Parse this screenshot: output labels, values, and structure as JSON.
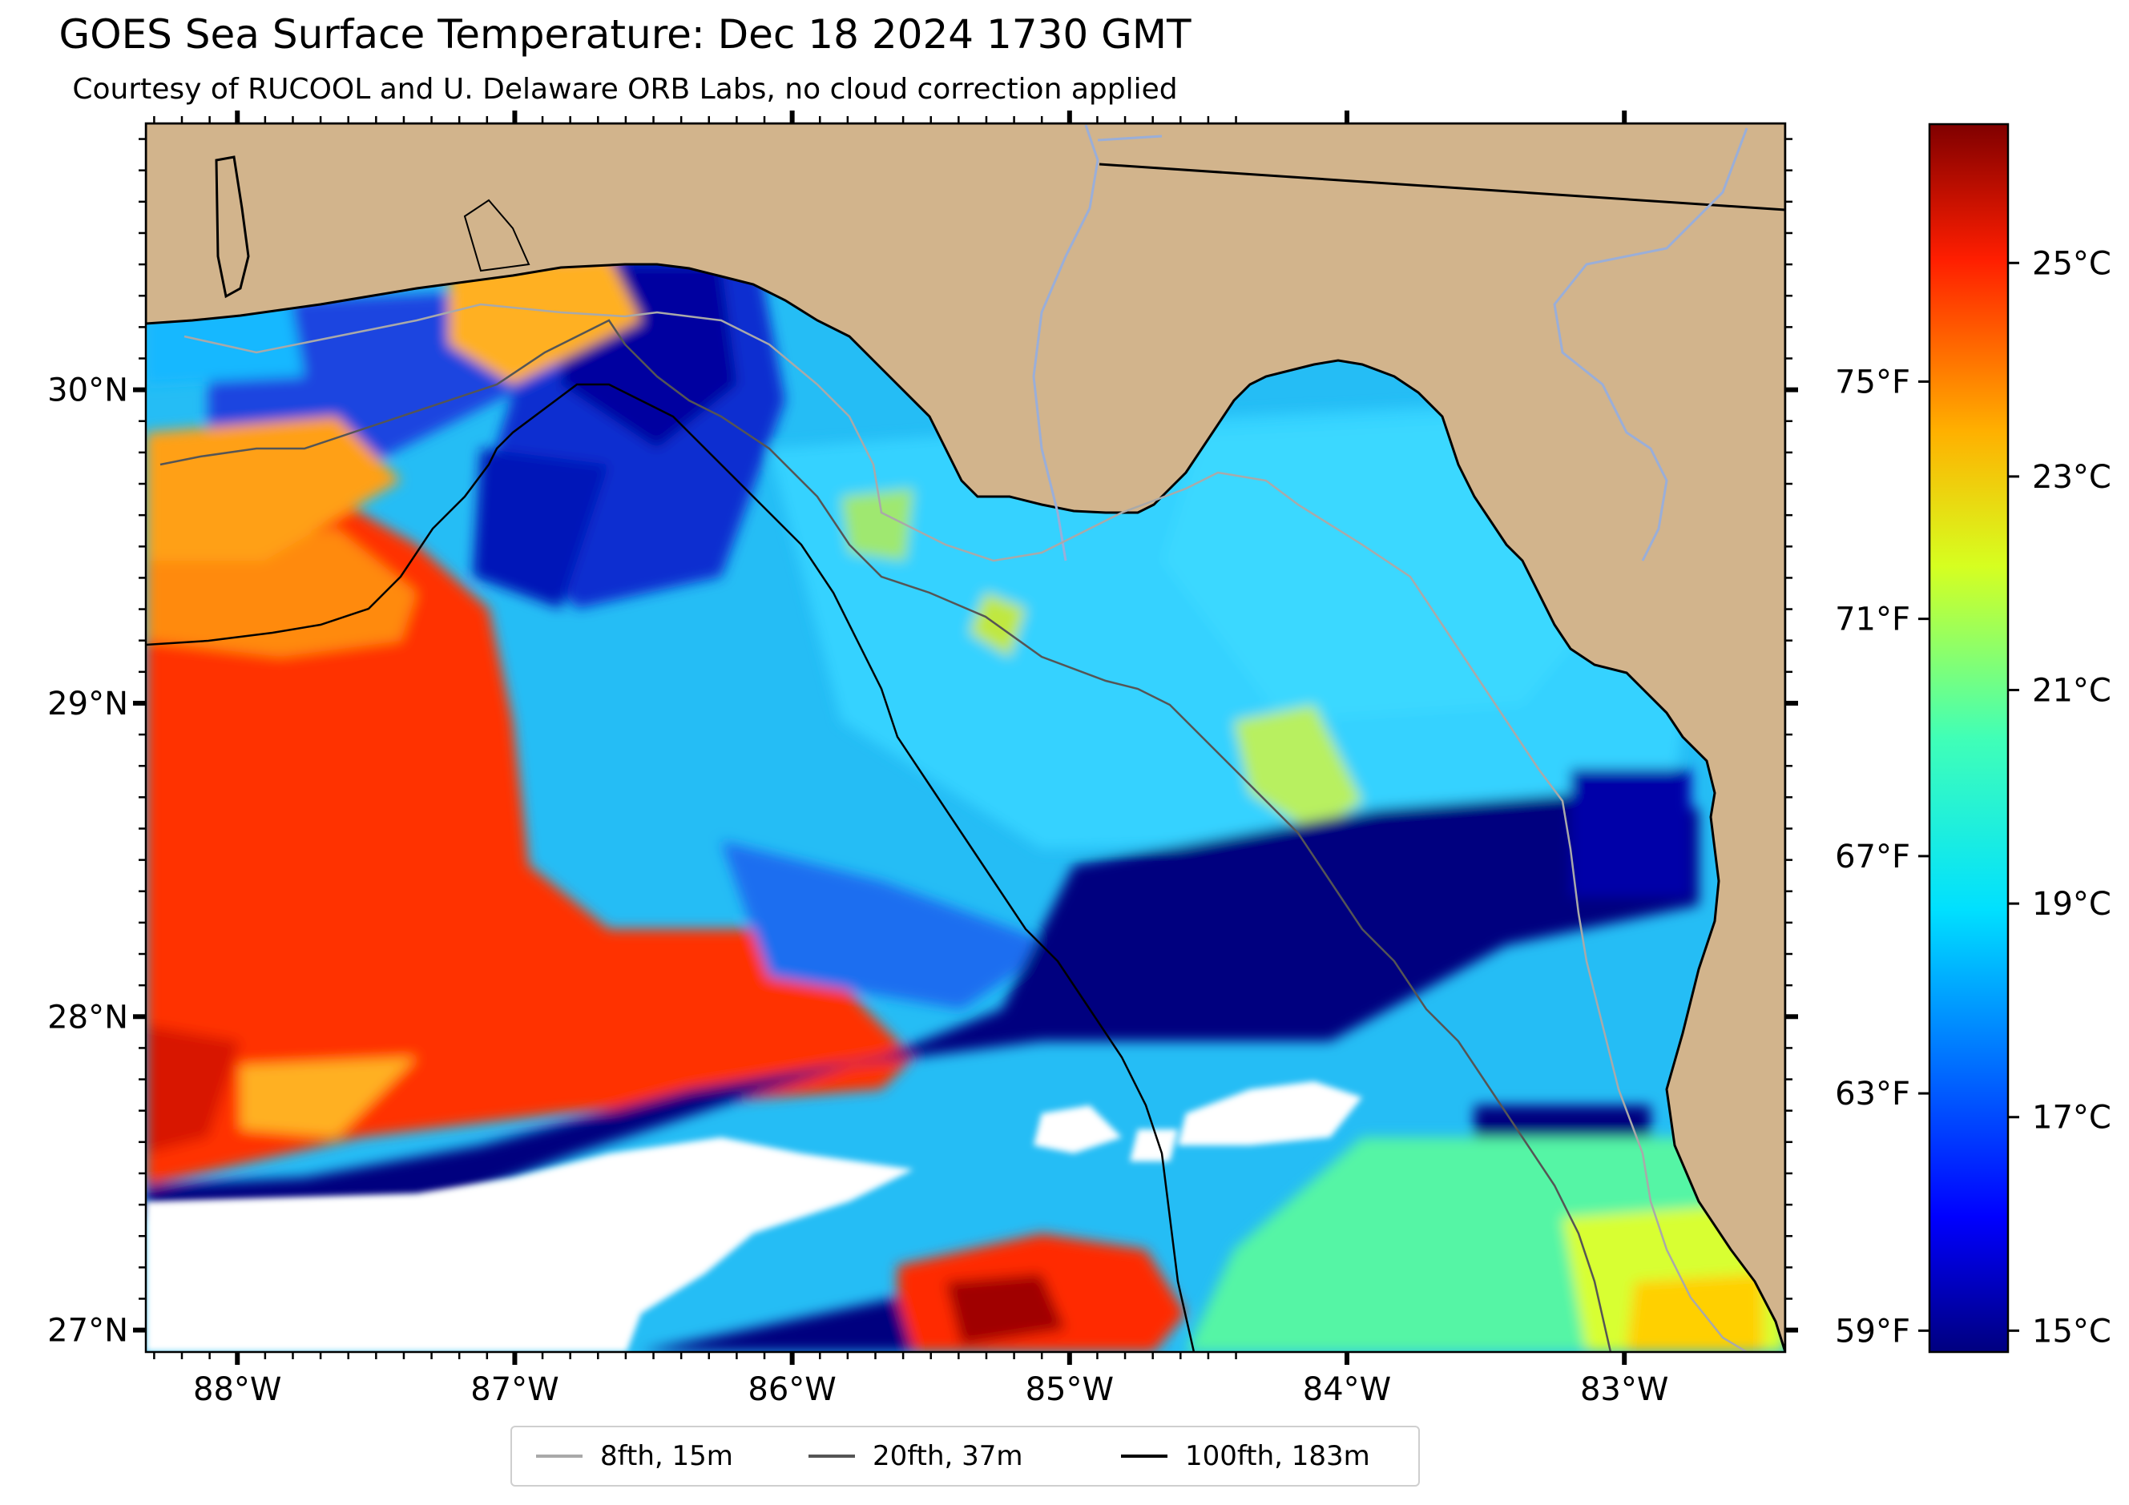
{
  "title": "GOES Sea Surface Temperature: Dec 18 2024 1730 GMT",
  "subtitle": "Courtesy of RUCOOL and U. Delaware ORB Labs, no cloud correction applied",
  "map": {
    "region": "Northeastern Gulf of Mexico / Florida Big Bend",
    "lon_range": [
      -88.33,
      -82.42
    ],
    "lat_range": [
      26.93,
      30.85
    ],
    "land_color": "#d2b48c",
    "nodata_color": "#ffffff",
    "colormap": "jet"
  },
  "axes": {
    "lon_ticks": [
      "88°W",
      "87°W",
      "86°W",
      "85°W",
      "84°W",
      "83°W"
    ],
    "lat_ticks": [
      "30°N",
      "29°N",
      "28°N",
      "27°N"
    ]
  },
  "colorbar": {
    "range_c": [
      14.8,
      26.3
    ],
    "celsius_ticks": [
      "25°C",
      "23°C",
      "21°C",
      "19°C",
      "17°C",
      "15°C"
    ],
    "fahrenheit_ticks": [
      "75°F",
      "71°F",
      "67°F",
      "63°F",
      "59°F"
    ]
  },
  "legend": {
    "items": [
      {
        "label": "8fth, 15m",
        "color": "#a9a9a9"
      },
      {
        "label": "20fth, 37m",
        "color": "#555555"
      },
      {
        "label": "100fth, 183m",
        "color": "#000000"
      }
    ]
  }
}
